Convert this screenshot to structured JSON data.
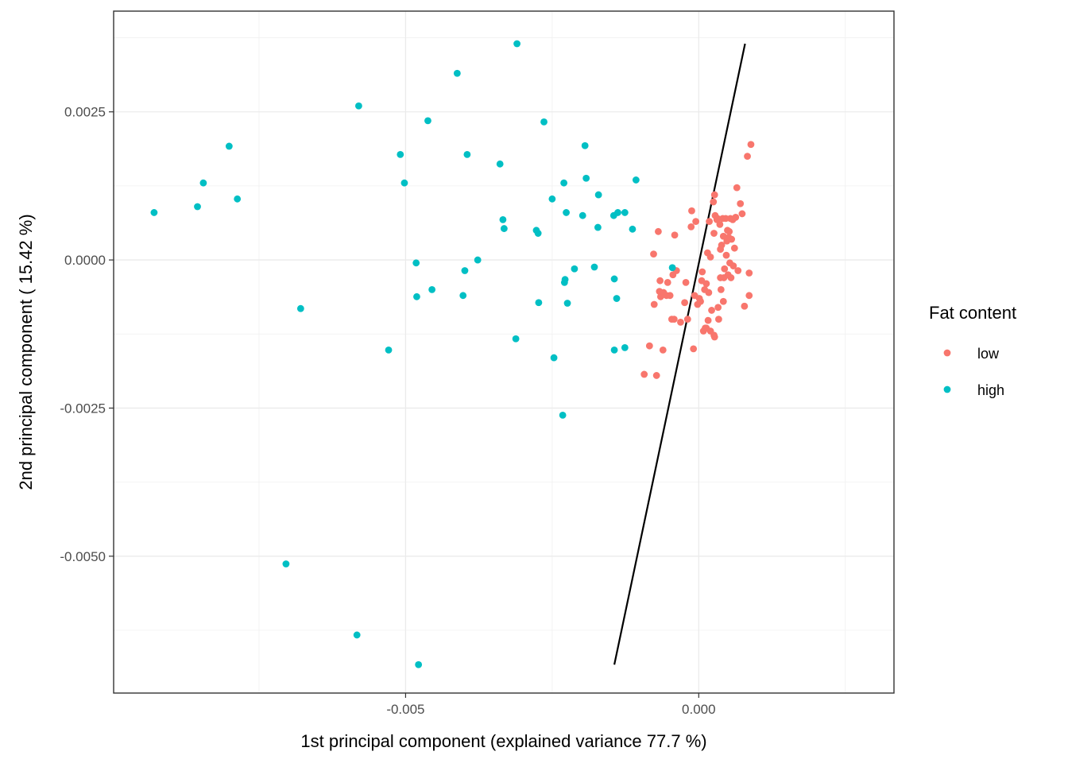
{
  "chart_data": {
    "type": "scatter",
    "title": "",
    "xlabel": "1st principal component (explained variance 77.7 %)",
    "ylabel": "2nd principal component ( 15.42 %)",
    "xlim": [
      -0.00998,
      0.00333
    ],
    "ylim": [
      -0.00731,
      0.0042
    ],
    "x_ticks": [
      -0.005,
      0.0
    ],
    "x_tick_labels": [
      "-0.005",
      "0.000"
    ],
    "y_ticks": [
      0.0025,
      0.0,
      -0.0025,
      -0.005
    ],
    "y_tick_labels": [
      "0.0025",
      "0.0000",
      "-0.0025",
      "-0.0050"
    ],
    "grid": true,
    "legend": {
      "title": "Fat content",
      "placement": "right"
    },
    "series": [
      {
        "name": "low",
        "color": "#F8766D",
        "points": [
          [
            -0.00093,
            -0.00193
          ],
          [
            -0.00084,
            -0.00145
          ],
          [
            -0.00077,
            0.0001
          ],
          [
            -0.00076,
            -0.00075
          ],
          [
            -0.00072,
            -0.00195
          ],
          [
            -0.00069,
            0.00048
          ],
          [
            -0.00067,
            -0.00053
          ],
          [
            -0.00066,
            -0.00035
          ],
          [
            -0.00065,
            -0.00062
          ],
          [
            -0.00061,
            -0.00152
          ],
          [
            -0.0006,
            -0.00055
          ],
          [
            -0.00055,
            -0.0006
          ],
          [
            -0.00053,
            -0.00038
          ],
          [
            -0.00049,
            -0.0006
          ],
          [
            -0.00046,
            -0.001
          ],
          [
            -0.00044,
            -0.00025
          ],
          [
            -0.00042,
            -0.001
          ],
          [
            -0.00041,
            0.00042
          ],
          [
            -0.00038,
            -0.00018
          ],
          [
            -0.00031,
            -0.00105
          ],
          [
            -0.00024,
            -0.00072
          ],
          [
            -0.00022,
            -0.00038
          ],
          [
            -0.00019,
            -0.001
          ],
          [
            -0.00013,
            0.00056
          ],
          [
            -0.00012,
            0.00083
          ],
          [
            -9e-05,
            -0.0015
          ],
          [
            -7e-05,
            -0.0006
          ],
          [
            -5e-05,
            0.00065
          ],
          [
            -2e-05,
            -0.00075
          ],
          [
            1e-05,
            -0.00065
          ],
          [
            3e-05,
            -0.0007
          ],
          [
            5e-05,
            -0.00035
          ],
          [
            6e-05,
            -0.0002
          ],
          [
            8e-05,
            -0.0012
          ],
          [
            0.0001,
            -0.0005
          ],
          [
            0.00011,
            -0.00115
          ],
          [
            0.00013,
            -0.00115
          ],
          [
            0.00013,
            -0.0004
          ],
          [
            0.00015,
            0.00012
          ],
          [
            0.00016,
            -0.00102
          ],
          [
            0.00017,
            -0.00055
          ],
          [
            0.00018,
            0.00065
          ],
          [
            0.0002,
            5e-05
          ],
          [
            0.0002,
            -0.0012
          ],
          [
            0.00022,
            -0.00085
          ],
          [
            0.00025,
            0.00098
          ],
          [
            0.00026,
            0.00045
          ],
          [
            0.00026,
            -0.00127
          ],
          [
            0.00027,
            0.0011
          ],
          [
            0.00027,
            -0.0013
          ],
          [
            0.00028,
            0.00075
          ],
          [
            0.00031,
            0.00068
          ],
          [
            0.00032,
            0.0007
          ],
          [
            0.00033,
            -0.0008
          ],
          [
            0.00034,
            -0.001
          ],
          [
            0.00036,
            0.0006
          ],
          [
            0.00037,
            0.00018
          ],
          [
            0.00037,
            -0.0003
          ],
          [
            0.00038,
            -0.0005
          ],
          [
            0.00039,
            0.00025
          ],
          [
            0.00041,
            0.0007
          ],
          [
            0.00042,
            0.0004
          ],
          [
            0.00042,
            -0.0007
          ],
          [
            0.00043,
            -0.0003
          ],
          [
            0.00044,
            -0.00015
          ],
          [
            0.00046,
            0.0007
          ],
          [
            0.00047,
            8e-05
          ],
          [
            0.00048,
            0.00032
          ],
          [
            0.00049,
            0.0005
          ],
          [
            0.0005,
            -0.00025
          ],
          [
            0.00051,
            0.00038
          ],
          [
            0.00052,
            0.00048
          ],
          [
            0.00053,
            -5e-05
          ],
          [
            0.00054,
            0.0007
          ],
          [
            0.00055,
            -0.0003
          ],
          [
            0.00056,
            0.00035
          ],
          [
            0.00058,
            0.00068
          ],
          [
            0.00059,
            -0.0001
          ],
          [
            0.00061,
            0.0002
          ],
          [
            0.00063,
            0.00072
          ],
          [
            0.00065,
            0.00122
          ],
          [
            0.00067,
            -0.00018
          ],
          [
            0.00071,
            0.00095
          ],
          [
            0.00074,
            0.00078
          ],
          [
            0.00078,
            -0.00078
          ],
          [
            0.00083,
            0.00175
          ],
          [
            0.00086,
            -0.0006
          ],
          [
            0.00086,
            -0.00022
          ],
          [
            0.00089,
            0.00195
          ]
        ]
      },
      {
        "name": "high",
        "color": "#00BFC4",
        "points": [
          [
            -0.00929,
            0.0008
          ],
          [
            -0.00855,
            0.0009
          ],
          [
            -0.00845,
            0.0013
          ],
          [
            -0.00801,
            0.00192
          ],
          [
            -0.00787,
            0.00103
          ],
          [
            -0.00704,
            -0.00513
          ],
          [
            -0.00679,
            -0.00082
          ],
          [
            -0.00583,
            -0.00633
          ],
          [
            -0.0058,
            0.0026
          ],
          [
            -0.00529,
            -0.00152
          ],
          [
            -0.00509,
            0.00178
          ],
          [
            -0.00502,
            0.0013
          ],
          [
            -0.00482,
            -5e-05
          ],
          [
            -0.00481,
            -0.00062
          ],
          [
            -0.00478,
            -0.00683
          ],
          [
            -0.00462,
            0.00235
          ],
          [
            -0.00455,
            -0.0005
          ],
          [
            -0.00412,
            0.00315
          ],
          [
            -0.00402,
            -0.0006
          ],
          [
            -0.00399,
            -0.00018
          ],
          [
            -0.00395,
            0.00178
          ],
          [
            -0.00377,
            0.0
          ],
          [
            -0.00339,
            0.00162
          ],
          [
            -0.00334,
            0.00068
          ],
          [
            -0.00332,
            0.00053
          ],
          [
            -0.00312,
            -0.00133
          ],
          [
            -0.0031,
            0.00365
          ],
          [
            -0.00277,
            0.0005
          ],
          [
            -0.00274,
            0.00045
          ],
          [
            -0.00273,
            -0.00072
          ],
          [
            -0.00264,
            0.00233
          ],
          [
            -0.0025,
            0.00103
          ],
          [
            -0.00247,
            -0.00165
          ],
          [
            -0.00232,
            -0.00262
          ],
          [
            -0.0023,
            0.0013
          ],
          [
            -0.00229,
            -0.00038
          ],
          [
            -0.00228,
            -0.00033
          ],
          [
            -0.00226,
            0.0008
          ],
          [
            -0.00224,
            -0.00073
          ],
          [
            -0.00212,
            -0.00015
          ],
          [
            -0.00198,
            0.00075
          ],
          [
            -0.00194,
            0.00193
          ],
          [
            -0.00192,
            0.00138
          ],
          [
            -0.00178,
            -0.00012
          ],
          [
            -0.00172,
            0.00055
          ],
          [
            -0.00171,
            0.0011
          ],
          [
            -0.00145,
            0.00075
          ],
          [
            -0.00144,
            -0.00152
          ],
          [
            -0.00144,
            -0.00032
          ],
          [
            -0.0014,
            -0.00065
          ],
          [
            -0.00138,
            0.0008
          ],
          [
            -0.00126,
            0.0008
          ],
          [
            -0.00126,
            -0.00148
          ],
          [
            -0.00113,
            0.00052
          ],
          [
            -0.00107,
            0.00135
          ],
          [
            -0.00045,
            -0.00013
          ]
        ]
      }
    ],
    "annotations": [
      {
        "type": "line",
        "color": "#000000",
        "from": [
          -0.00144,
          -0.00683
        ],
        "to": [
          0.00079,
          0.00365
        ]
      }
    ]
  }
}
